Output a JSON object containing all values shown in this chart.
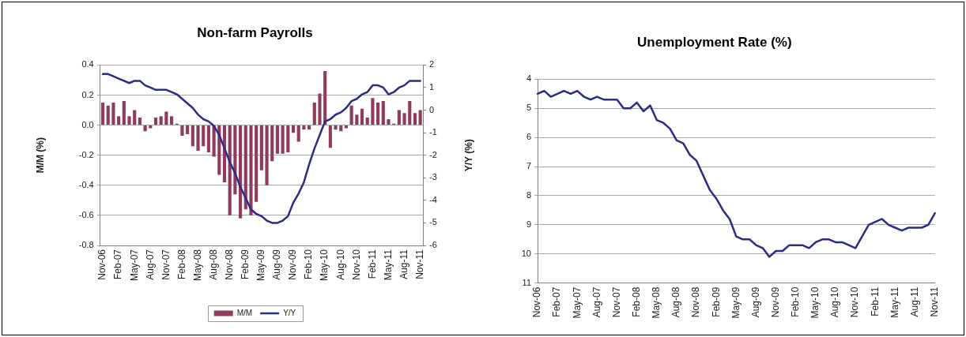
{
  "chart_data": [
    {
      "type": "bar",
      "title": "Non-farm Payrolls",
      "ylabel": "M/M (%)",
      "y2label": "Y/Y (%)",
      "categories": [
        "Nov-06",
        null,
        null,
        "Feb-07",
        null,
        null,
        "May-07",
        null,
        null,
        "Aug-07",
        null,
        null,
        "Nov-07",
        null,
        null,
        "Feb-08",
        null,
        null,
        "May-08",
        null,
        null,
        "Aug-08",
        null,
        null,
        "Nov-08",
        null,
        null,
        "Feb-09",
        null,
        null,
        "May-09",
        null,
        null,
        "Aug-09",
        null,
        null,
        "Nov-09",
        null,
        null,
        "Feb-10",
        null,
        null,
        "May-10",
        null,
        null,
        "Aug-10",
        null,
        null,
        "Nov-10",
        null,
        null,
        "Feb-11",
        null,
        null,
        "May-11",
        null,
        null,
        "Aug-11",
        null,
        null,
        "Nov-11"
      ],
      "series": [
        {
          "name": "M/M",
          "type": "bar",
          "color": "#8e3b5e",
          "values": [
            0.15,
            0.13,
            0.15,
            0.06,
            0.16,
            0.06,
            0.1,
            0.05,
            -0.04,
            -0.02,
            0.05,
            0.06,
            0.09,
            0.06,
            0.01,
            -0.07,
            -0.06,
            -0.14,
            -0.17,
            -0.14,
            -0.18,
            -0.21,
            -0.33,
            -0.38,
            -0.6,
            -0.46,
            -0.62,
            -0.56,
            -0.6,
            -0.51,
            -0.3,
            -0.4,
            -0.24,
            -0.19,
            -0.19,
            -0.18,
            -0.05,
            -0.11,
            -0.03,
            -0.03,
            0.15,
            0.21,
            0.36,
            -0.15,
            -0.03,
            -0.04,
            -0.02,
            0.13,
            0.07,
            0.11,
            0.05,
            0.18,
            0.15,
            0.16,
            0.04,
            0.01,
            0.1,
            0.08,
            0.16,
            0.08,
            0.1
          ]
        },
        {
          "name": "Y/Y",
          "type": "line",
          "axis": "y2",
          "color": "#2b2b88",
          "values": [
            1.6,
            1.6,
            1.5,
            1.4,
            1.3,
            1.2,
            1.3,
            1.3,
            1.1,
            1.0,
            0.9,
            0.9,
            0.9,
            0.8,
            0.7,
            0.5,
            0.3,
            0.1,
            -0.2,
            -0.4,
            -0.5,
            -0.7,
            -1.1,
            -1.7,
            -2.3,
            -2.8,
            -3.4,
            -3.9,
            -4.4,
            -4.6,
            -4.7,
            -4.9,
            -5.0,
            -5.0,
            -4.9,
            -4.7,
            -4.1,
            -3.7,
            -3.2,
            -2.4,
            -1.7,
            -1.1,
            -0.5,
            -0.4,
            -0.2,
            -0.1,
            0.1,
            0.4,
            0.5,
            0.7,
            0.8,
            1.1,
            1.1,
            1.0,
            0.7,
            0.8,
            1.0,
            1.1,
            1.3,
            1.3,
            1.3
          ]
        }
      ],
      "ylim": [
        -0.8,
        0.4
      ],
      "yticks": [
        -0.8,
        -0.6,
        -0.4,
        -0.2,
        {
          "value": 0,
          "label": "0.0"
        },
        0.2,
        0.4
      ],
      "y2lim": [
        -6,
        2
      ],
      "y2ticks": [
        -6,
        -5,
        -4,
        -3,
        -2,
        -1,
        0,
        1,
        2
      ],
      "grid": "y",
      "legend": "bottom",
      "marker": "none"
    },
    {
      "type": "line",
      "title": "Unemployment Rate (%)",
      "categories": [
        "Nov-06",
        null,
        null,
        "Feb-07",
        null,
        null,
        "May-07",
        null,
        null,
        "Aug-07",
        null,
        null,
        "Nov-07",
        null,
        null,
        "Feb-08",
        null,
        null,
        "May-08",
        null,
        null,
        "Aug-08",
        null,
        null,
        "Nov-08",
        null,
        null,
        "Feb-09",
        null,
        null,
        "May-09",
        null,
        null,
        "Aug-09",
        null,
        null,
        "Nov-09",
        null,
        null,
        "Feb-10",
        null,
        null,
        "May-10",
        null,
        null,
        "Aug-10",
        null,
        null,
        "Nov-10",
        null,
        null,
        "Feb-11",
        null,
        null,
        "May-11",
        null,
        null,
        "Aug-11",
        null,
        null,
        "Nov-11"
      ],
      "series": [
        {
          "color": "#2b2b88",
          "values": [
            4.5,
            4.4,
            4.6,
            4.5,
            4.4,
            4.5,
            4.4,
            4.6,
            4.7,
            4.6,
            4.7,
            4.7,
            4.7,
            5.0,
            5.0,
            4.8,
            5.1,
            4.9,
            5.4,
            5.5,
            5.7,
            6.1,
            6.2,
            6.6,
            6.8,
            7.3,
            7.8,
            8.1,
            8.5,
            8.8,
            9.4,
            9.5,
            9.5,
            9.7,
            9.8,
            10.1,
            9.9,
            9.9,
            9.7,
            9.7,
            9.7,
            9.8,
            9.6,
            9.5,
            9.5,
            9.6,
            9.6,
            9.7,
            9.8,
            9.4,
            9.0,
            8.9,
            8.8,
            9.0,
            9.1,
            9.2,
            9.1,
            9.1,
            9.1,
            9.0,
            8.6
          ]
        }
      ],
      "ylim": [
        11,
        4
      ],
      "yticks": [
        4,
        5,
        6,
        7,
        8,
        9,
        10,
        11
      ],
      "grid": "y",
      "marker": "none"
    }
  ]
}
